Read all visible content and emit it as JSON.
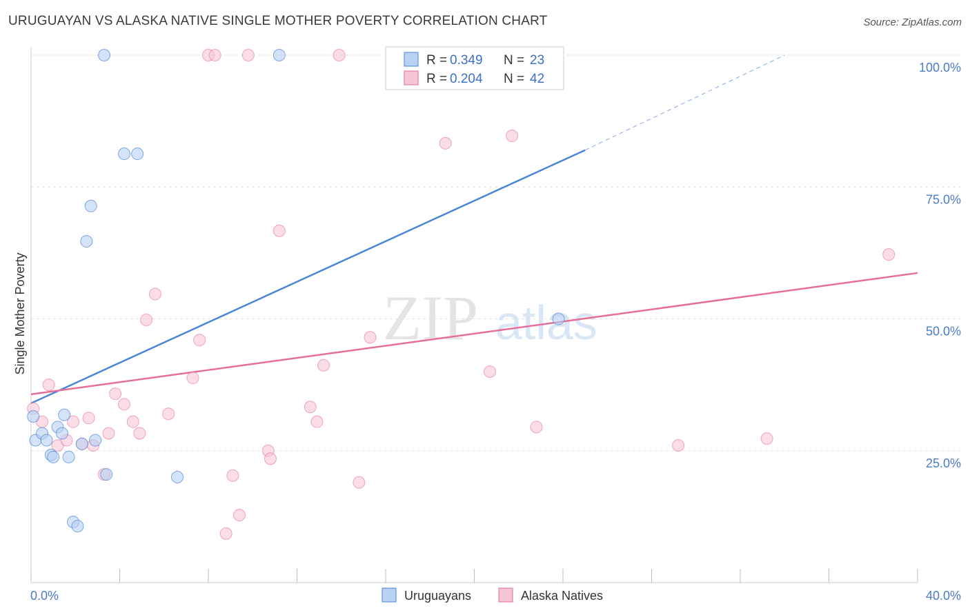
{
  "header": {
    "title": "URUGUAYAN VS ALASKA NATIVE SINGLE MOTHER POVERTY CORRELATION CHART",
    "source": "Source: ZipAtlas.com"
  },
  "colors": {
    "blue": "#4a86d8",
    "blue_fill": "#b8d0f2",
    "pink": "#e66f98",
    "pink_fill": "#f7c6d6",
    "grid": "#e2e2e2",
    "tick_text": "#4a7ac8"
  },
  "watermark": {
    "zip": "ZIP",
    "atlas": "atlas"
  },
  "legend": {
    "rows": [
      {
        "r_label": "R = ",
        "r_value": "0.349",
        "n_label": "N = ",
        "n_value": "23"
      },
      {
        "r_label": "R = ",
        "r_value": "0.204",
        "n_label": "N = ",
        "n_value": "42"
      }
    ]
  },
  "chart_data": {
    "type": "scatter",
    "title": "URUGUAYAN VS ALASKA NATIVE SINGLE MOTHER POVERTY CORRELATION CHART",
    "xlabel": "",
    "ylabel": "Single Mother Poverty",
    "xlim": [
      0,
      40
    ],
    "ylim": [
      0,
      100
    ],
    "x_tick_labels": [
      "0.0%",
      "40.0%"
    ],
    "y_ticks": [
      25,
      50,
      75,
      100
    ],
    "y_tick_labels": [
      "25.0%",
      "50.0%",
      "75.0%",
      "100.0%"
    ],
    "series": [
      {
        "name": "Uruguayans",
        "r": 0.349,
        "n": 23,
        "trend": {
          "x0": 0,
          "y0": 34.0,
          "x1": 25.0,
          "y1": 82.0,
          "dash_x1": 34.0,
          "dash_y1": 100.0
        },
        "points": [
          {
            "x": 0.1,
            "y": 31.5
          },
          {
            "x": 0.2,
            "y": 27.0
          },
          {
            "x": 0.5,
            "y": 28.3
          },
          {
            "x": 0.7,
            "y": 27.0
          },
          {
            "x": 0.9,
            "y": 24.2
          },
          {
            "x": 1.0,
            "y": 23.8
          },
          {
            "x": 1.2,
            "y": 29.5
          },
          {
            "x": 1.4,
            "y": 28.3
          },
          {
            "x": 1.5,
            "y": 31.8
          },
          {
            "x": 1.7,
            "y": 23.8
          },
          {
            "x": 1.9,
            "y": 11.5
          },
          {
            "x": 2.1,
            "y": 10.7
          },
          {
            "x": 2.3,
            "y": 26.3
          },
          {
            "x": 2.5,
            "y": 64.7
          },
          {
            "x": 2.7,
            "y": 71.4
          },
          {
            "x": 2.9,
            "y": 27.0
          },
          {
            "x": 3.3,
            "y": 100.0
          },
          {
            "x": 3.4,
            "y": 20.5
          },
          {
            "x": 4.2,
            "y": 81.3
          },
          {
            "x": 4.8,
            "y": 81.3
          },
          {
            "x": 6.6,
            "y": 20.0
          },
          {
            "x": 11.2,
            "y": 100.0
          },
          {
            "x": 23.8,
            "y": 50.0
          }
        ]
      },
      {
        "name": "Alaska Natives",
        "r": 0.204,
        "n": 42,
        "trend": {
          "x0": 0,
          "y0": 35.7,
          "x1": 40.0,
          "y1": 58.7
        },
        "points": [
          {
            "x": 0.1,
            "y": 33.0
          },
          {
            "x": 0.5,
            "y": 30.5
          },
          {
            "x": 0.8,
            "y": 37.5
          },
          {
            "x": 1.2,
            "y": 26.0
          },
          {
            "x": 1.6,
            "y": 27.0
          },
          {
            "x": 1.9,
            "y": 30.5
          },
          {
            "x": 2.3,
            "y": 26.3
          },
          {
            "x": 2.6,
            "y": 31.2
          },
          {
            "x": 2.8,
            "y": 26.0
          },
          {
            "x": 3.3,
            "y": 20.5
          },
          {
            "x": 3.5,
            "y": 28.3
          },
          {
            "x": 3.8,
            "y": 35.8
          },
          {
            "x": 4.2,
            "y": 33.8
          },
          {
            "x": 4.6,
            "y": 30.5
          },
          {
            "x": 4.9,
            "y": 28.3
          },
          {
            "x": 5.2,
            "y": 49.8
          },
          {
            "x": 5.6,
            "y": 54.7
          },
          {
            "x": 6.2,
            "y": 32.0
          },
          {
            "x": 7.3,
            "y": 38.8
          },
          {
            "x": 7.6,
            "y": 46.0
          },
          {
            "x": 8.0,
            "y": 100.0
          },
          {
            "x": 8.3,
            "y": 100.0
          },
          {
            "x": 8.8,
            "y": 9.3
          },
          {
            "x": 9.1,
            "y": 20.3
          },
          {
            "x": 9.4,
            "y": 12.8
          },
          {
            "x": 9.8,
            "y": 100.0
          },
          {
            "x": 10.7,
            "y": 25.0
          },
          {
            "x": 10.8,
            "y": 23.5
          },
          {
            "x": 11.2,
            "y": 66.7
          },
          {
            "x": 12.6,
            "y": 33.3
          },
          {
            "x": 12.9,
            "y": 30.5
          },
          {
            "x": 13.2,
            "y": 41.2
          },
          {
            "x": 13.9,
            "y": 100.0
          },
          {
            "x": 14.8,
            "y": 19.0
          },
          {
            "x": 15.3,
            "y": 46.5
          },
          {
            "x": 18.7,
            "y": 83.3
          },
          {
            "x": 20.7,
            "y": 40.0
          },
          {
            "x": 21.7,
            "y": 84.7
          },
          {
            "x": 22.8,
            "y": 29.5
          },
          {
            "x": 29.2,
            "y": 26.0
          },
          {
            "x": 33.2,
            "y": 27.3
          },
          {
            "x": 38.7,
            "y": 62.2
          }
        ]
      }
    ]
  }
}
